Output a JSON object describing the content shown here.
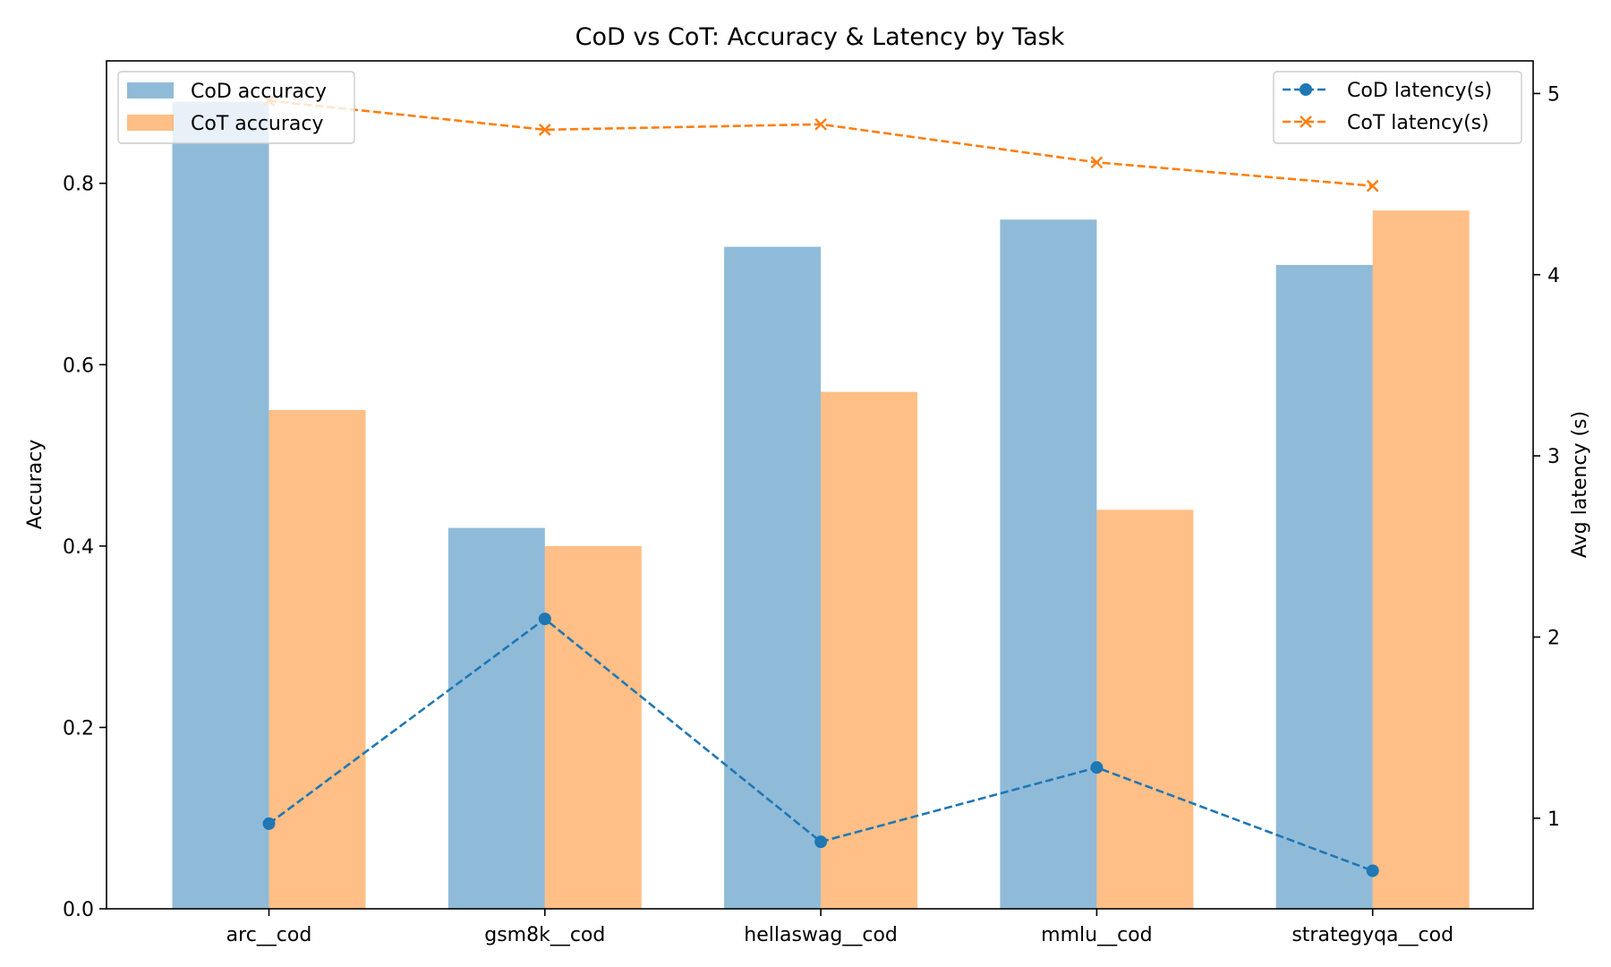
{
  "chart_data": {
    "type": "bar",
    "title": "CoD vs CoT: Accuracy & Latency by Task",
    "categories": [
      "arc__cod",
      "gsm8k__cod",
      "hellaswag__cod",
      "mmlu__cod",
      "strategyqa__cod"
    ],
    "ylabel": "Accuracy",
    "ylabel_right": "Avg latency (s)",
    "xlabel": "",
    "ylim": [
      0,
      0.935
    ],
    "ylim_right": [
      0.5,
      5.18
    ],
    "yticks": [
      0.0,
      0.2,
      0.4,
      0.6,
      0.8
    ],
    "ytick_labels": [
      "0.0",
      "0.2",
      "0.4",
      "0.6",
      "0.8"
    ],
    "yticks_right": [
      1,
      2,
      3,
      4,
      5
    ],
    "ytick_labels_right": [
      "1",
      "2",
      "3",
      "4",
      "5"
    ],
    "grid": false,
    "bar_series": [
      {
        "name": "CoD accuracy",
        "values": [
          0.89,
          0.42,
          0.73,
          0.76,
          0.71
        ],
        "color": "#1f77b4",
        "opacity": 0.5
      },
      {
        "name": "CoT accuracy",
        "values": [
          0.55,
          0.4,
          0.57,
          0.44,
          0.77
        ],
        "color": "#ff7f0e",
        "opacity": 0.5
      }
    ],
    "line_series": [
      {
        "name": "CoD latency(s)",
        "values": [
          0.97,
          2.1,
          0.87,
          1.28,
          0.71
        ],
        "color": "#1f77b4",
        "marker": "circle",
        "linestyle": "dashed",
        "axis": "right"
      },
      {
        "name": "CoT latency(s)",
        "values": [
          4.96,
          4.8,
          4.83,
          4.62,
          4.49
        ],
        "color": "#ff7f0e",
        "marker": "x",
        "linestyle": "dashed",
        "axis": "right"
      }
    ],
    "legend_bars_placement": "top-left",
    "legend_lines_placement": "top-right"
  }
}
